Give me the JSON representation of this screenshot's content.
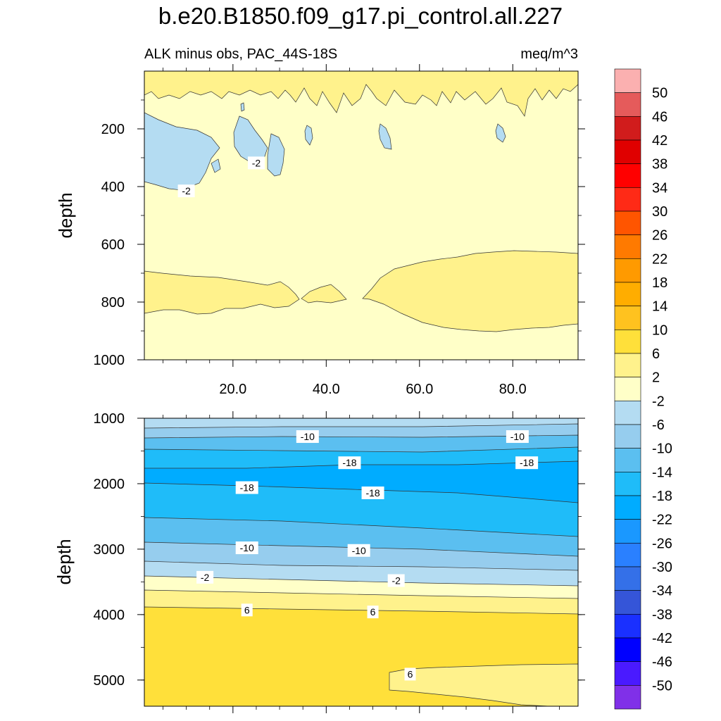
{
  "chart_data": {
    "type": "contour",
    "title": "b.e20.B1850.f09_g17.pi_control.all.227",
    "subtitle_left": "ALK minus obs, PAC_44S-18S",
    "subtitle_right": "meq/m^3",
    "xlabel": "",
    "ylabel": "depth",
    "xlim": [
      1,
      94
    ],
    "x_ticks": [
      {
        "value": 20,
        "label": "20.0"
      },
      {
        "value": 40,
        "label": "40.0"
      },
      {
        "value": 60,
        "label": "60.0"
      },
      {
        "value": 80,
        "label": "80.0"
      }
    ],
    "panels": [
      {
        "name": "upper",
        "ylim": [
          0,
          1000
        ],
        "y_ticks": [
          {
            "value": 200,
            "label": "200"
          },
          {
            "value": 400,
            "label": "400"
          },
          {
            "value": 600,
            "label": "600"
          },
          {
            "value": 800,
            "label": "800"
          },
          {
            "value": 1000,
            "label": "1000"
          }
        ],
        "contour_labels": [
          {
            "x": 10,
            "y": 415,
            "text": "-2"
          },
          {
            "x": 25,
            "y": 318,
            "text": "-2"
          }
        ]
      },
      {
        "name": "lower",
        "ylim": [
          1000,
          5400
        ],
        "y_ticks": [
          {
            "value": 1000,
            "label": "1000"
          },
          {
            "value": 2000,
            "label": "2000"
          },
          {
            "value": 3000,
            "label": "3000"
          },
          {
            "value": 4000,
            "label": "4000"
          },
          {
            "value": 5000,
            "label": "5000"
          }
        ],
        "contour_labels": [
          {
            "x": 36,
            "y": 1280,
            "text": "-10"
          },
          {
            "x": 81,
            "y": 1280,
            "text": "-10"
          },
          {
            "x": 45,
            "y": 1680,
            "text": "-18"
          },
          {
            "x": 83,
            "y": 1680,
            "text": "-18"
          },
          {
            "x": 23,
            "y": 2060,
            "text": "-18"
          },
          {
            "x": 50,
            "y": 2140,
            "text": "-18"
          },
          {
            "x": 23,
            "y": 2980,
            "text": "-10"
          },
          {
            "x": 47,
            "y": 3020,
            "text": "-10"
          },
          {
            "x": 14,
            "y": 3430,
            "text": "-2"
          },
          {
            "x": 55,
            "y": 3480,
            "text": "-2"
          },
          {
            "x": 23,
            "y": 3930,
            "text": "6"
          },
          {
            "x": 50,
            "y": 3960,
            "text": "6"
          },
          {
            "x": 58,
            "y": 4910,
            "text": "6"
          }
        ]
      }
    ],
    "colorbar": {
      "labels": [
        "50",
        "46",
        "42",
        "38",
        "34",
        "30",
        "26",
        "22",
        "18",
        "14",
        "10",
        "6",
        "2",
        "-2",
        "-6",
        "-10",
        "-14",
        "-18",
        "-22",
        "-26",
        "-30",
        "-34",
        "-38",
        "-42",
        "-46",
        "-50"
      ],
      "colors": [
        "#fbb0b0",
        "#e55b5b",
        "#d11c1c",
        "#e00000",
        "#ff0000",
        "#ff2a16",
        "#ff5500",
        "#ff7a00",
        "#ff9a00",
        "#ffad00",
        "#ffc21f",
        "#ffe03a",
        "#fff28c",
        "#ffffc8",
        "#b4dcf2",
        "#96cdee",
        "#5bbff0",
        "#1fbcf9",
        "#00acff",
        "#1a98ff",
        "#2a80ff",
        "#3470e8",
        "#3555d8",
        "#1a30ff",
        "#0000ff",
        "#4a1aff",
        "#8030e8"
      ]
    },
    "fill_colors": {
      "base_upper": "#ffffc8",
      "neg_2_6": "#b4dcf2",
      "pos_2_6": "#fff28c",
      "neg_6_10": "#96cdee",
      "neg_10_14": "#5bbff0",
      "neg_14_18": "#1fbcf9",
      "neg_18_22": "#00acff",
      "pos_6_10": "#ffe03a"
    }
  }
}
